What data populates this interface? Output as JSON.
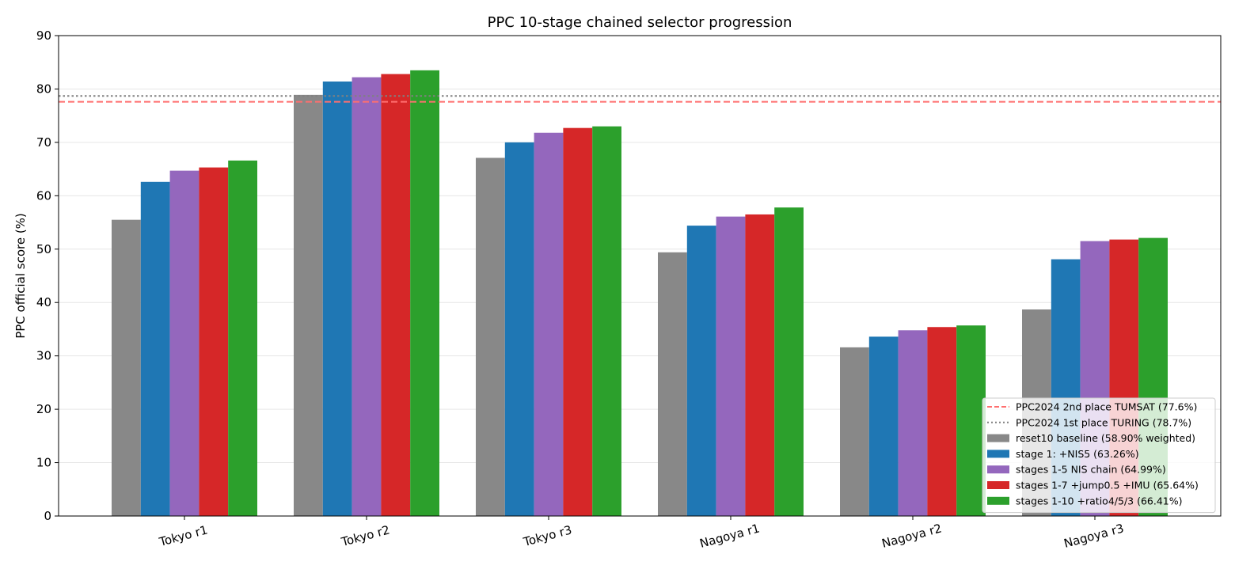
{
  "chart_data": {
    "type": "bar",
    "title": "PPC 10-stage chained selector progression",
    "xlabel": "",
    "ylabel": "PPC official score (%)",
    "ylim": [
      0,
      90
    ],
    "yticks": [
      0,
      10,
      20,
      30,
      40,
      50,
      60,
      70,
      80,
      90
    ],
    "grid": true,
    "legend_position": "bottom-right",
    "categories": [
      "Tokyo r1",
      "Tokyo r2",
      "Tokyo r3",
      "Nagoya r1",
      "Nagoya r2",
      "Nagoya r3"
    ],
    "series": [
      {
        "name": "reset10 baseline (58.90% weighted)",
        "color": "#888888",
        "values": [
          55.5,
          78.9,
          67.1,
          49.4,
          31.6,
          38.7
        ]
      },
      {
        "name": "stage 1: +NIS5 (63.26%)",
        "color": "#1f77b4",
        "values": [
          62.6,
          81.4,
          70.0,
          54.4,
          33.6,
          48.1
        ]
      },
      {
        "name": "stages 1-5 NIS chain (64.99%)",
        "color": "#9467bd",
        "values": [
          64.7,
          82.2,
          71.8,
          56.1,
          34.8,
          51.5
        ]
      },
      {
        "name": "stages 1-7 +jump0.5 +IMU (65.64%)",
        "color": "#d62728",
        "values": [
          65.3,
          82.8,
          72.7,
          56.5,
          35.4,
          51.8
        ]
      },
      {
        "name": "stages 1-10 +ratio4/5/3 (66.41%)",
        "color": "#2ca02c",
        "values": [
          66.6,
          83.5,
          73.0,
          57.8,
          35.7,
          52.1
        ]
      }
    ],
    "reference_lines": [
      {
        "name": "PPC2024 2nd place TUMSAT (77.6%)",
        "value": 77.6,
        "color": "#ff6f6f",
        "style": "dashed"
      },
      {
        "name": "PPC2024 1st place TURING (78.7%)",
        "value": 78.7,
        "color": "#808080",
        "style": "dotted"
      }
    ]
  }
}
